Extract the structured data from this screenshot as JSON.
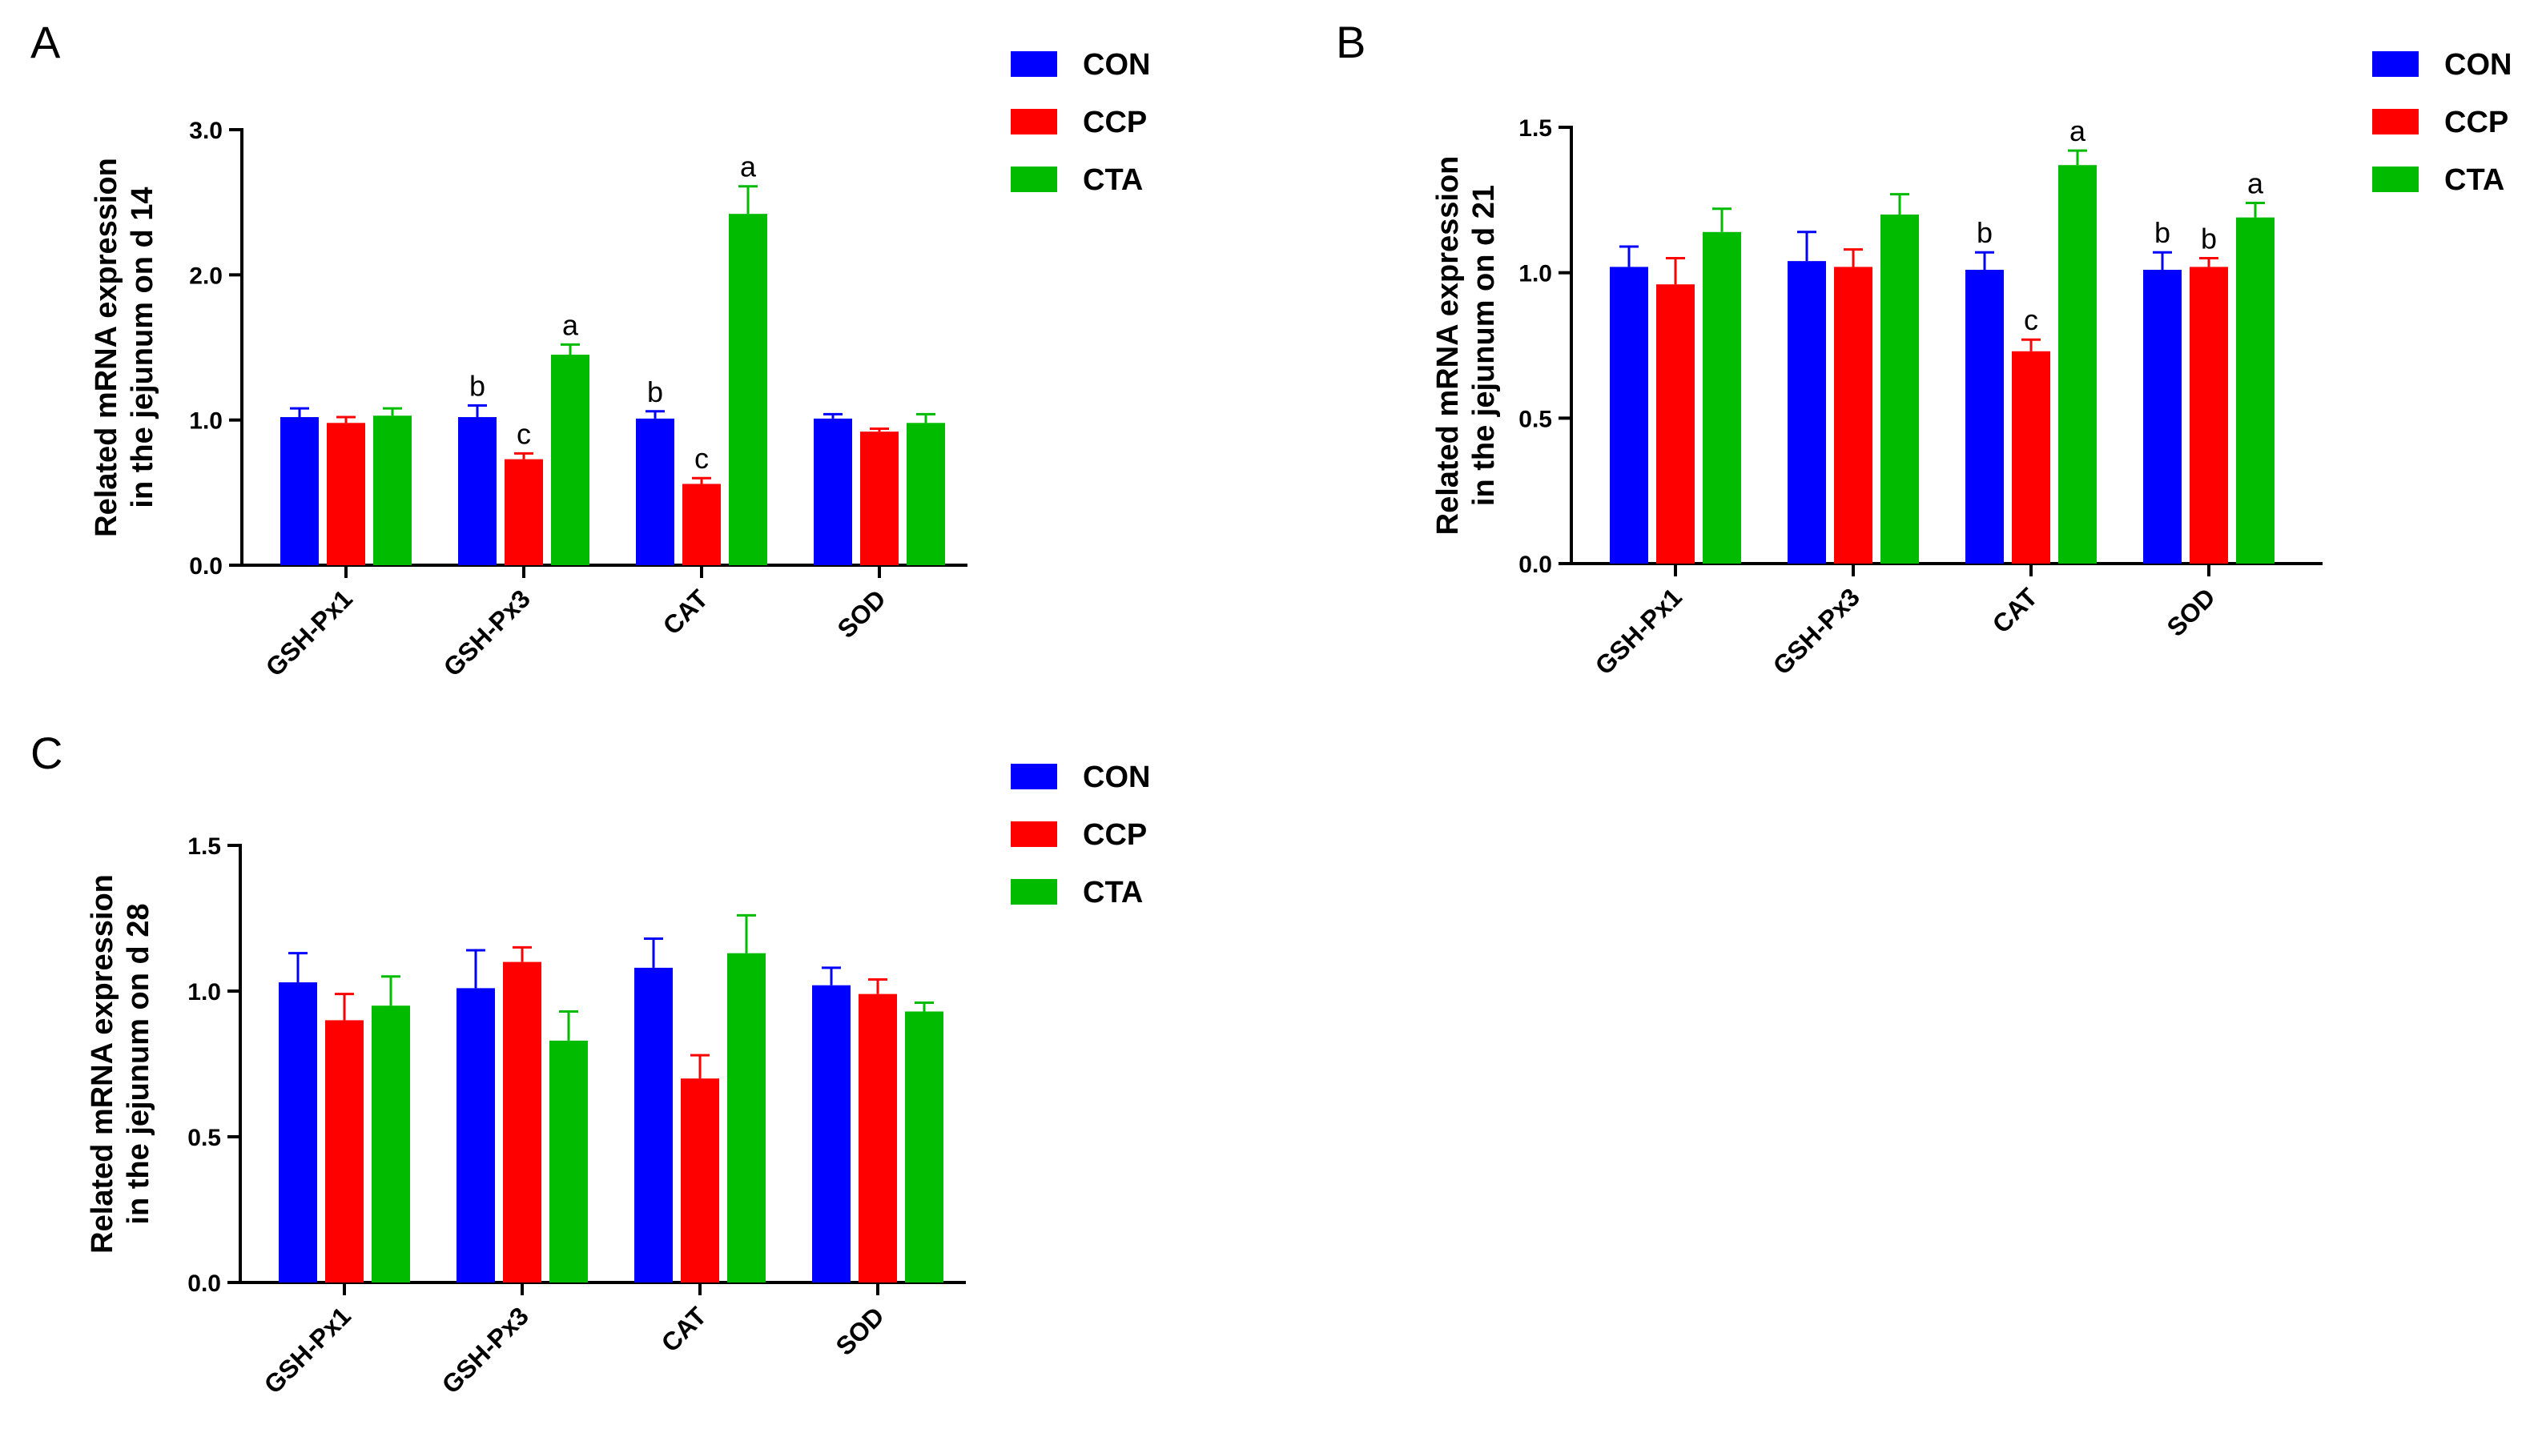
{
  "chart_data": [
    {
      "type": "bar",
      "panel": "A",
      "title": "",
      "xlabel": "",
      "ylabel": [
        "Related mRNA expression",
        "in the jejunum on d 14"
      ],
      "ylim": [
        0,
        3.0
      ],
      "yticks": [
        "0.0",
        "1.0",
        "2.0",
        "3.0"
      ],
      "categories": [
        "GSH-Px1",
        "GSH-Px3",
        "CAT",
        "SOD"
      ],
      "series": [
        {
          "name": "CON",
          "color": "#0000FF",
          "values": [
            1.02,
            1.02,
            1.01,
            1.01
          ],
          "errors": [
            0.06,
            0.08,
            0.05,
            0.03
          ],
          "letters": [
            "",
            "b",
            "b",
            ""
          ]
        },
        {
          "name": "CCP",
          "color": "#FF0000",
          "values": [
            0.98,
            0.73,
            0.56,
            0.92
          ],
          "errors": [
            0.04,
            0.04,
            0.04,
            0.02
          ],
          "letters": [
            "",
            "c",
            "c",
            ""
          ]
        },
        {
          "name": "CTA",
          "color": "#00BB00",
          "values": [
            1.03,
            1.45,
            2.42,
            0.98
          ],
          "errors": [
            0.05,
            0.07,
            0.19,
            0.06
          ],
          "letters": [
            "",
            "a",
            "a",
            ""
          ]
        }
      ],
      "legend": [
        "CON",
        "CCP",
        "CTA"
      ],
      "legend_position": "top-right"
    },
    {
      "type": "bar",
      "panel": "B",
      "title": "",
      "xlabel": "",
      "ylabel": [
        "Related mRNA expression",
        "in the jejunum on d 21"
      ],
      "ylim": [
        0,
        1.5
      ],
      "yticks": [
        "0.0",
        "0.5",
        "1.0",
        "1.5"
      ],
      "categories": [
        "GSH-Px1",
        "GSH-Px3",
        "CAT",
        "SOD"
      ],
      "series": [
        {
          "name": "CON",
          "color": "#0000FF",
          "values": [
            1.02,
            1.04,
            1.01,
            1.01
          ],
          "errors": [
            0.07,
            0.1,
            0.06,
            0.06
          ],
          "letters": [
            "",
            "",
            "b",
            "b"
          ]
        },
        {
          "name": "CCP",
          "color": "#FF0000",
          "values": [
            0.96,
            1.02,
            0.73,
            1.02
          ],
          "errors": [
            0.09,
            0.06,
            0.04,
            0.03
          ],
          "letters": [
            "",
            "",
            "c",
            "b"
          ]
        },
        {
          "name": "CTA",
          "color": "#00BB00",
          "values": [
            1.14,
            1.2,
            1.37,
            1.19
          ],
          "errors": [
            0.08,
            0.07,
            0.05,
            0.05
          ],
          "letters": [
            "",
            "",
            "a",
            "a"
          ]
        }
      ],
      "legend": [
        "CON",
        "CCP",
        "CTA"
      ],
      "legend_position": "top-right"
    },
    {
      "type": "bar",
      "panel": "C",
      "title": "",
      "xlabel": "",
      "ylabel": [
        "Related mRNA expression",
        "in the jejunum on d 28"
      ],
      "ylim": [
        0,
        1.5
      ],
      "yticks": [
        "0.0",
        "0.5",
        "1.0",
        "1.5"
      ],
      "categories": [
        "GSH-Px1",
        "GSH-Px3",
        "CAT",
        "SOD"
      ],
      "series": [
        {
          "name": "CON",
          "color": "#0000FF",
          "values": [
            1.03,
            1.01,
            1.08,
            1.02
          ],
          "errors": [
            0.1,
            0.13,
            0.1,
            0.06
          ],
          "letters": [
            "",
            "",
            "",
            ""
          ]
        },
        {
          "name": "CCP",
          "color": "#FF0000",
          "values": [
            0.9,
            1.1,
            0.7,
            0.99
          ],
          "errors": [
            0.09,
            0.05,
            0.08,
            0.05
          ],
          "letters": [
            "",
            "",
            "",
            ""
          ]
        },
        {
          "name": "CTA",
          "color": "#00BB00",
          "values": [
            0.95,
            0.83,
            1.13,
            0.93
          ],
          "errors": [
            0.1,
            0.1,
            0.13,
            0.03
          ],
          "letters": [
            "",
            "",
            "",
            ""
          ]
        }
      ],
      "legend": [
        "CON",
        "CCP",
        "CTA"
      ],
      "legend_position": "top-right"
    }
  ]
}
